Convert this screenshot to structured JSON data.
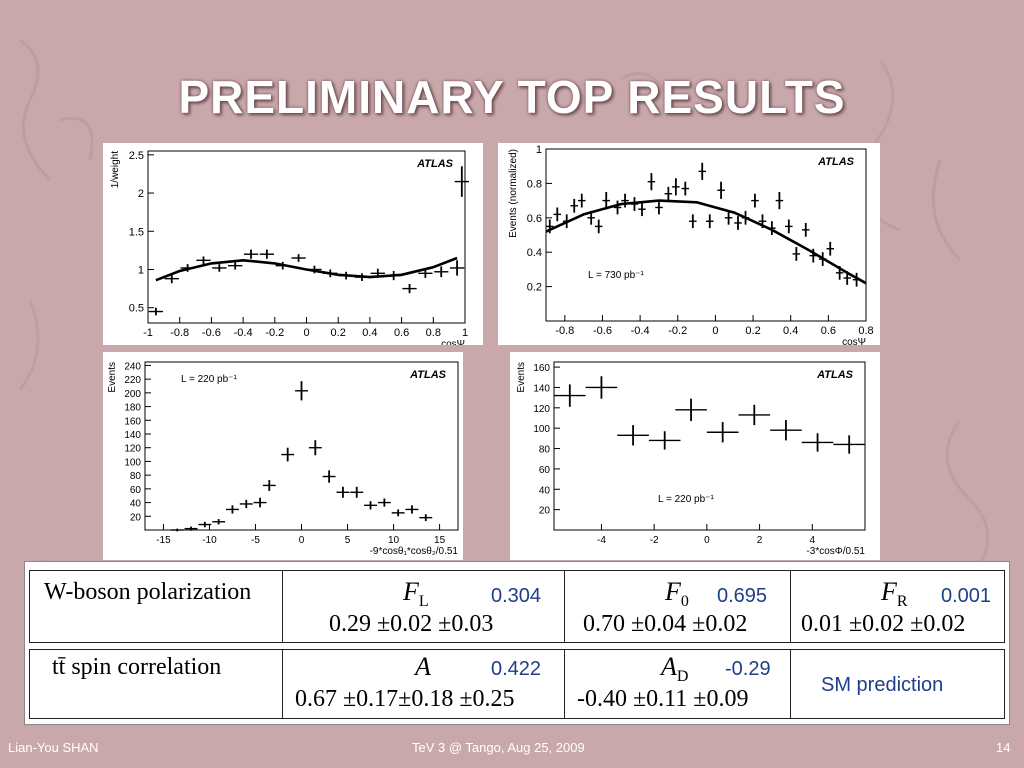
{
  "slide": {
    "title": "PRELIMINARY TOP RESULTS",
    "footer_left": "Lian-You SHAN",
    "footer_center": "TeV 3 @ Tango, Aug 25, 2009",
    "footer_right": "14"
  },
  "chart_data": [
    {
      "type": "scatter",
      "atlas_label": "ATLAS",
      "ylabel": "1/weight",
      "xlabel": "cosΨ",
      "xlim": [
        -1,
        1
      ],
      "ylim": [
        0.3,
        2.55
      ],
      "xticks": [
        -1,
        -0.8,
        -0.6,
        -0.4,
        -0.2,
        0,
        0.2,
        0.4,
        0.6,
        0.8,
        1
      ],
      "xticklabels": [
        "-1",
        "-0.8",
        "-0.6",
        "-0.4",
        "-0.2",
        "0",
        "0.2",
        "0.4",
        "0.6",
        "0.8",
        "1"
      ],
      "yticks": [
        0.5,
        1,
        1.5,
        2,
        2.5
      ],
      "yticklabels": [
        "0.5",
        "1",
        "1.5",
        "2",
        "2.5"
      ],
      "x": [
        -0.95,
        -0.85,
        -0.75,
        -0.65,
        -0.55,
        -0.45,
        -0.35,
        -0.25,
        -0.15,
        -0.05,
        0.05,
        0.15,
        0.25,
        0.35,
        0.45,
        0.55,
        0.65,
        0.75,
        0.85,
        0.95,
        0.98
      ],
      "y": [
        0.45,
        0.88,
        1.02,
        1.12,
        1.02,
        1.05,
        1.2,
        1.2,
        1.05,
        1.15,
        1.0,
        0.95,
        0.92,
        0.9,
        0.95,
        0.92,
        0.75,
        0.95,
        0.97,
        1.02,
        2.15
      ],
      "yerr": [
        0.05,
        0.06,
        0.05,
        0.05,
        0.05,
        0.05,
        0.06,
        0.06,
        0.05,
        0.05,
        0.05,
        0.05,
        0.05,
        0.05,
        0.06,
        0.06,
        0.06,
        0.06,
        0.07,
        0.1,
        0.2
      ],
      "fit_x": [
        -0.95,
        -0.8,
        -0.6,
        -0.4,
        -0.2,
        0,
        0.2,
        0.4,
        0.6,
        0.8,
        0.95
      ],
      "fit_y": [
        0.86,
        0.98,
        1.08,
        1.12,
        1.08,
        1.0,
        0.93,
        0.9,
        0.93,
        1.03,
        1.15
      ]
    },
    {
      "type": "scatter",
      "atlas_label": "ATLAS",
      "annotation": "L = 730 pb⁻¹",
      "ylabel": "Events (normalized)",
      "xlabel": "cosΨ",
      "xlim": [
        -0.9,
        0.8
      ],
      "ylim": [
        0.0,
        1.0
      ],
      "xticks": [
        -0.8,
        -0.6,
        -0.4,
        -0.2,
        0,
        0.2,
        0.4,
        0.6,
        0.8
      ],
      "xticklabels": [
        "-0.8",
        "-0.6",
        "-0.4",
        "-0.2",
        "0",
        "0.2",
        "0.4",
        "0.6",
        "0.8"
      ],
      "yticks": [
        0.2,
        0.4,
        0.6,
        0.8,
        1
      ],
      "yticklabels": [
        "0.2",
        "0.4",
        "0.6",
        "0.8",
        "1"
      ],
      "x": [
        -0.88,
        -0.84,
        -0.79,
        -0.75,
        -0.71,
        -0.66,
        -0.62,
        -0.58,
        -0.52,
        -0.48,
        -0.43,
        -0.39,
        -0.34,
        -0.3,
        -0.25,
        -0.21,
        -0.16,
        -0.12,
        -0.07,
        -0.03,
        0.03,
        0.07,
        0.12,
        0.16,
        0.21,
        0.25,
        0.3,
        0.34,
        0.39,
        0.43,
        0.48,
        0.52,
        0.57,
        0.61,
        0.66,
        0.7,
        0.75
      ],
      "y": [
        0.55,
        0.62,
        0.58,
        0.67,
        0.7,
        0.6,
        0.55,
        0.7,
        0.66,
        0.7,
        0.68,
        0.65,
        0.81,
        0.66,
        0.74,
        0.78,
        0.77,
        0.58,
        0.87,
        0.58,
        0.76,
        0.6,
        0.57,
        0.6,
        0.7,
        0.58,
        0.54,
        0.7,
        0.55,
        0.39,
        0.53,
        0.38,
        0.36,
        0.42,
        0.28,
        0.25,
        0.24
      ],
      "yerr": [
        0.04,
        0.04,
        0.04,
        0.04,
        0.04,
        0.04,
        0.04,
        0.05,
        0.04,
        0.04,
        0.04,
        0.04,
        0.05,
        0.04,
        0.04,
        0.05,
        0.04,
        0.04,
        0.05,
        0.04,
        0.05,
        0.04,
        0.04,
        0.04,
        0.04,
        0.04,
        0.04,
        0.05,
        0.04,
        0.04,
        0.04,
        0.04,
        0.04,
        0.04,
        0.04,
        0.04,
        0.04
      ],
      "fit_x": [
        -0.9,
        -0.7,
        -0.5,
        -0.3,
        -0.1,
        0.1,
        0.3,
        0.5,
        0.7,
        0.8
      ],
      "fit_y": [
        0.52,
        0.62,
        0.68,
        0.7,
        0.69,
        0.63,
        0.53,
        0.41,
        0.28,
        0.22
      ]
    },
    {
      "type": "scatter",
      "atlas_label": "ATLAS",
      "annotation": "L = 220 pb⁻¹",
      "ylabel": "Events",
      "xlabel": "-9*cosθ₁*cosθ₂/0.51",
      "xlim": [
        -17,
        17
      ],
      "ylim": [
        0,
        245
      ],
      "xticks": [
        -15,
        -10,
        -5,
        0,
        5,
        10,
        15
      ],
      "xticklabels": [
        "-15",
        "-10",
        "-5",
        "0",
        "5",
        "10",
        "15"
      ],
      "yticks": [
        20,
        40,
        60,
        80,
        100,
        120,
        140,
        160,
        180,
        200,
        220,
        240
      ],
      "yticklabels": [
        "20",
        "40",
        "60",
        "80",
        "100",
        "120",
        "140",
        "160",
        "180",
        "200",
        "220",
        "240"
      ],
      "x": [
        -13.5,
        -12,
        -10.5,
        -9,
        -7.5,
        -6,
        -4.5,
        -3.5,
        -1.5,
        0,
        1.5,
        3,
        4.5,
        6,
        7.5,
        9,
        10.5,
        12,
        13.5
      ],
      "y": [
        0,
        2,
        8,
        12,
        30,
        38,
        40,
        65,
        110,
        203,
        120,
        78,
        55,
        55,
        36,
        40,
        25,
        30,
        18
      ],
      "xerr": [
        0.7,
        0.7,
        0.7,
        0.7,
        0.7,
        0.7,
        0.7,
        0.7,
        0.7,
        0.7,
        0.7,
        0.7,
        0.7,
        0.7,
        0.7,
        0.7,
        0.7,
        0.7,
        0.7
      ],
      "yerr": [
        2,
        3,
        4,
        4,
        6,
        6,
        7,
        8,
        10,
        14,
        11,
        9,
        8,
        8,
        6,
        6,
        5,
        6,
        5
      ]
    },
    {
      "type": "scatter",
      "atlas_label": "ATLAS",
      "annotation": "L = 220 pb⁻¹",
      "ylabel": "Events",
      "xlabel": "-3*cosΦ/0.51",
      "xlim": [
        -5.8,
        6.0
      ],
      "ylim": [
        0,
        165
      ],
      "xticks": [
        -4,
        -2,
        0,
        2,
        4
      ],
      "xticklabels": [
        "-4",
        "-2",
        "0",
        "2",
        "4"
      ],
      "yticks": [
        20,
        40,
        60,
        80,
        100,
        120,
        140,
        160
      ],
      "yticklabels": [
        "20",
        "40",
        "60",
        "80",
        "100",
        "120",
        "140",
        "160"
      ],
      "x": [
        -5.2,
        -4.0,
        -2.8,
        -1.6,
        -0.6,
        0.6,
        1.8,
        3.0,
        4.2,
        5.4
      ],
      "y": [
        132,
        140,
        93,
        88,
        118,
        96,
        113,
        98,
        86,
        84
      ],
      "xerr": [
        0.6,
        0.6,
        0.6,
        0.6,
        0.6,
        0.6,
        0.6,
        0.6,
        0.6,
        0.6
      ],
      "yerr": [
        11,
        11,
        10,
        9,
        11,
        10,
        10,
        10,
        9,
        9
      ]
    }
  ],
  "table": {
    "row1": {
      "label": "W-boson polarization",
      "c1_symbol": "F",
      "c1_sub": "L",
      "c1_pred": "0.304",
      "c1_value": "0.29 ±0.02 ±0.03",
      "c2_symbol": "F",
      "c2_sub": "0",
      "c2_pred": "0.695",
      "c2_value": "0.70 ±0.04 ±0.02",
      "c3_symbol": "F",
      "c3_sub": "R",
      "c3_pred": "0.001",
      "c3_value": "0.01 ±0.02 ±0.02"
    },
    "row2": {
      "label": "tt̄ spin correlation",
      "c1_symbol": "A",
      "c1_pred": "0.422",
      "c1_value": "0.67 ±0.17±0.18 ±0.25",
      "c2_symbol": "A",
      "c2_sub": "D",
      "c2_pred": "-0.29",
      "c2_value": "-0.40 ±0.11 ±0.09",
      "c3_note": "SM prediction"
    }
  }
}
